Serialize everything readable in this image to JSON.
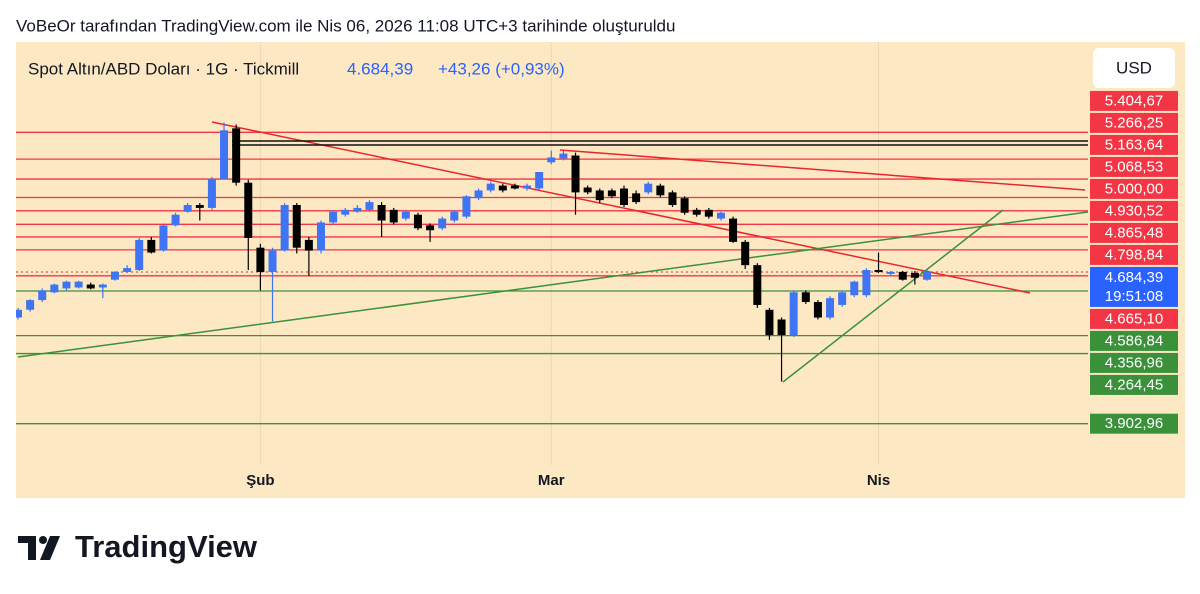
{
  "chart_data": {
    "type": "candlestick",
    "created_by": "VoBeOr tarafından TradingView.com ile Nis 06, 2026 11:08 UTC+3 tarihinde oluşturuldu",
    "title": "Spot Altın/ABD Doları · 1G · Tickmill",
    "price_text": "4.684,39",
    "change_text": "+43,26 (+0,93%)",
    "currency": "USD",
    "brand": "TradingView",
    "up_color": "#3f74f2",
    "down_color": "#000000",
    "ylim": [
      3520,
      5870
    ],
    "categories": [
      null,
      null,
      null,
      null,
      null,
      null,
      null,
      null,
      null,
      null,
      null,
      null,
      null,
      null,
      null,
      null,
      null,
      null,
      null,
      null,
      "Şub",
      null,
      null,
      null,
      null,
      null,
      null,
      null,
      null,
      null,
      null,
      null,
      null,
      null,
      null,
      null,
      null,
      null,
      null,
      null,
      null,
      null,
      null,
      null,
      "Mar",
      null,
      null,
      null,
      null,
      null,
      null,
      null,
      null,
      null,
      null,
      null,
      null,
      null,
      null,
      null,
      null,
      null,
      null,
      null,
      null,
      null,
      null,
      null,
      null,
      null,
      null,
      "Nis",
      null,
      null,
      null,
      null
    ],
    "open": [
      4450,
      4490,
      4540,
      4580,
      4600,
      4605,
      4620,
      4605,
      4645,
      4685,
      4695,
      4850,
      4795,
      4925,
      4995,
      5030,
      5015,
      5165,
      5425,
      5145,
      4810,
      4685,
      4795,
      5030,
      4850,
      4795,
      4940,
      4980,
      4995,
      5005,
      5030,
      5005,
      4960,
      4980,
      4925,
      4910,
      4950,
      4970,
      5065,
      5105,
      5130,
      5130,
      5115,
      5115,
      5250,
      5270,
      5285,
      5120,
      5105,
      5105,
      5115,
      5090,
      5095,
      5130,
      5095,
      5065,
      5005,
      5005,
      4960,
      4960,
      4840,
      4720,
      4490,
      4440,
      4360,
      4580,
      4530,
      4450,
      4515,
      4565,
      4565,
      4695,
      4675,
      4685,
      4680,
      4645
    ],
    "high": [
      4500,
      4545,
      4600,
      4625,
      4640,
      4640,
      4630,
      4625,
      4690,
      4720,
      4860,
      4865,
      4935,
      4990,
      5040,
      5040,
      5175,
      5455,
      5445,
      5160,
      4830,
      4810,
      5040,
      5040,
      4865,
      4950,
      5005,
      5015,
      5030,
      5055,
      5045,
      5015,
      5005,
      4990,
      4935,
      4970,
      5005,
      5080,
      5115,
      5150,
      5140,
      5140,
      5140,
      5200,
      5310,
      5310,
      5300,
      5130,
      5115,
      5115,
      5130,
      5105,
      5150,
      5140,
      5105,
      5075,
      5015,
      5015,
      4995,
      4970,
      4850,
      4730,
      4500,
      4450,
      4590,
      4590,
      4540,
      4560,
      4590,
      4640,
      4705,
      4785,
      4690,
      4690,
      4690,
      4700
    ],
    "low": [
      4440,
      4480,
      4530,
      4575,
      4590,
      4600,
      4595,
      4550,
      4640,
      4680,
      4690,
      4780,
      4790,
      4920,
      4990,
      4950,
      5005,
      5160,
      5130,
      4695,
      4590,
      4430,
      4790,
      4780,
      4665,
      4780,
      4930,
      4970,
      4990,
      4995,
      4865,
      4930,
      4950,
      4900,
      4840,
      4900,
      4940,
      4960,
      5055,
      5095,
      5095,
      5110,
      5105,
      5105,
      5240,
      5260,
      4980,
      5085,
      5040,
      5065,
      5020,
      5035,
      5085,
      5070,
      5020,
      4980,
      4970,
      4960,
      4950,
      4835,
      4700,
      4500,
      4335,
      4120,
      4350,
      4520,
      4440,
      4440,
      4505,
      4555,
      4555,
      4680,
      4665,
      4640,
      4620,
      4640
    ],
    "close": [
      4490,
      4540,
      4590,
      4620,
      4635,
      4635,
      4600,
      4620,
      4685,
      4705,
      4850,
      4785,
      4925,
      4980,
      5030,
      5015,
      5165,
      5415,
      5145,
      4860,
      4685,
      4795,
      5030,
      4810,
      4795,
      4940,
      4995,
      5005,
      5015,
      5045,
      4950,
      4940,
      4995,
      4910,
      4900,
      4960,
      4995,
      5075,
      5105,
      5140,
      5105,
      5115,
      5130,
      5200,
      5275,
      5295,
      5095,
      5095,
      5055,
      5075,
      5030,
      5045,
      5140,
      5080,
      5030,
      4990,
      4980,
      4970,
      4990,
      4840,
      4720,
      4515,
      4360,
      4360,
      4580,
      4530,
      4450,
      4550,
      4580,
      4635,
      4695,
      4685,
      4685,
      4645,
      4655,
      4685
    ],
    "levels": [
      {
        "value": 5404.67,
        "label": "5.404,67",
        "color": "#f23645"
      },
      {
        "value": 5266.25,
        "label": "5.266,25",
        "color": "#f23645"
      },
      {
        "value": 5163.64,
        "label": "5.163,64",
        "color": "#f23645"
      },
      {
        "value": 5068.53,
        "label": "5.068,53",
        "color": "#f23645"
      },
      {
        "value": 5000,
        "label": "5.000,00",
        "color": "#f23645"
      },
      {
        "value": 4930.52,
        "label": "4.930,52",
        "color": "#f23645"
      },
      {
        "value": 4865.48,
        "label": "4.865,48",
        "color": "#f23645"
      },
      {
        "value": 4798.84,
        "label": "4.798,84",
        "color": "#f23645"
      },
      {
        "value": 4665.1,
        "label": "4.665,10",
        "color": "#f23645"
      },
      {
        "value": 4586.84,
        "label": "4.586,84",
        "color": "#3a913a"
      },
      {
        "value": 4356.96,
        "label": "4.356,96",
        "color": "#3a913a"
      },
      {
        "value": 4264.45,
        "label": "4.264,45",
        "color": "#3a913a"
      },
      {
        "value": 3902.96,
        "label": "3.902,96",
        "color": "#3a913a"
      }
    ],
    "last_price": {
      "value": 4684.39,
      "label": "4.684,39",
      "color": "#2962ff"
    },
    "countdown": "19:51:08"
  }
}
